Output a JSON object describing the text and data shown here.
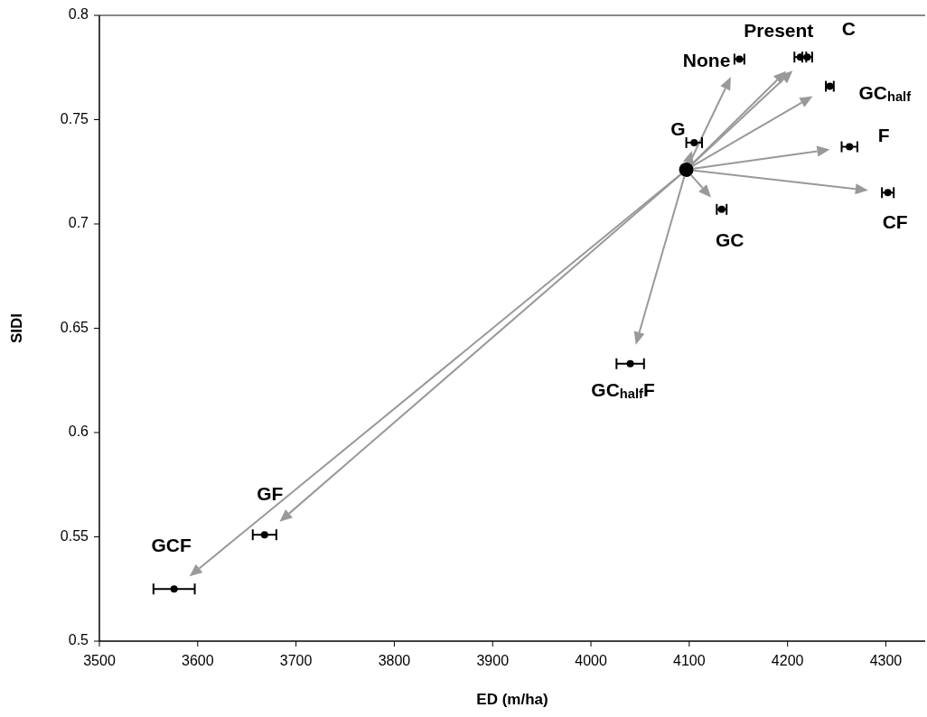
{
  "chart_data": {
    "type": "scatter",
    "xlabel": "ED (m/ha)",
    "ylabel": "SIDI",
    "xlim": [
      3500,
      4340
    ],
    "xticks": [
      3500,
      3600,
      3700,
      3800,
      3900,
      4000,
      4100,
      4200,
      4300
    ],
    "ylim": [
      0.5,
      0.8
    ],
    "yticks": [
      0.5,
      0.55,
      0.6,
      0.65,
      0.7,
      0.75,
      0.8
    ],
    "grid": false,
    "marker": "circle",
    "series": [
      {
        "color": "#000000",
        "x": [
          4151,
          4213,
          4220,
          4243,
          4105,
          4263,
          4302,
          4133,
          4040,
          3668,
          3576
        ],
        "values": [
          0.779,
          0.78,
          0.78,
          0.766,
          0.739,
          0.737,
          0.715,
          0.707,
          0.633,
          0.551,
          0.525
        ],
        "xerrors": [
          5,
          6,
          5,
          4,
          8,
          8,
          6,
          5,
          14,
          12,
          21
        ]
      },
      {
        "color": "#000000",
        "x": [
          4097
        ],
        "values": [
          0.726
        ]
      }
    ],
    "annotations": [
      {
        "text": "None",
        "x": 4151,
        "y": 0.779
      },
      {
        "text": "Present",
        "x": 4213,
        "y": 0.78
      },
      {
        "text": "C",
        "x": 4220,
        "y": 0.78
      },
      {
        "text": "GC$_{half}$",
        "x": 4243,
        "y": 0.766
      },
      {
        "text": "G",
        "x": 4105,
        "y": 0.739
      },
      {
        "text": "F",
        "x": 4263,
        "y": 0.737
      },
      {
        "text": "CF",
        "x": 4302,
        "y": 0.715
      },
      {
        "text": "GC",
        "x": 4133,
        "y": 0.707
      },
      {
        "text": "GC$_{half}$F",
        "x": 4040,
        "y": 0.633
      },
      {
        "text": "GF",
        "x": 3668,
        "y": 0.551
      },
      {
        "text": "GCF",
        "x": 3576,
        "y": 0.525
      }
    ]
  }
}
